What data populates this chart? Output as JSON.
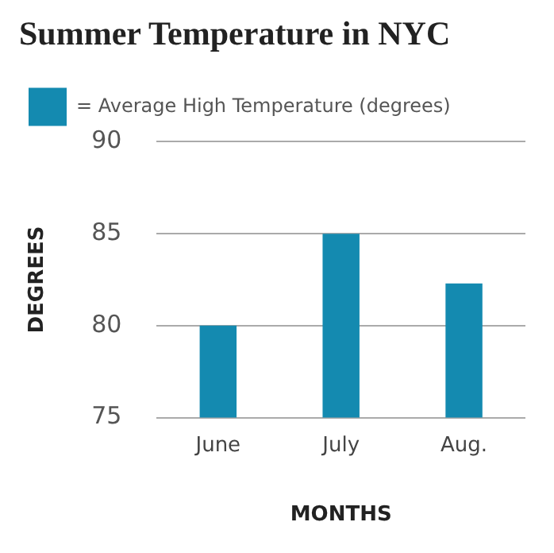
{
  "chart_data": {
    "type": "bar",
    "title": "Summer Temperature in NYC",
    "xlabel": "MONTHS",
    "ylabel": "DEGREES",
    "categories": [
      "June",
      "July",
      "Aug."
    ],
    "series": [
      {
        "name": "= Average High Temperature (degrees)",
        "color": "#148ab0",
        "values": [
          80,
          85,
          82.3
        ]
      }
    ],
    "ylim": [
      75,
      90
    ],
    "yticks": [
      75,
      80,
      85,
      90
    ],
    "grid": "y",
    "legend": "top left"
  }
}
